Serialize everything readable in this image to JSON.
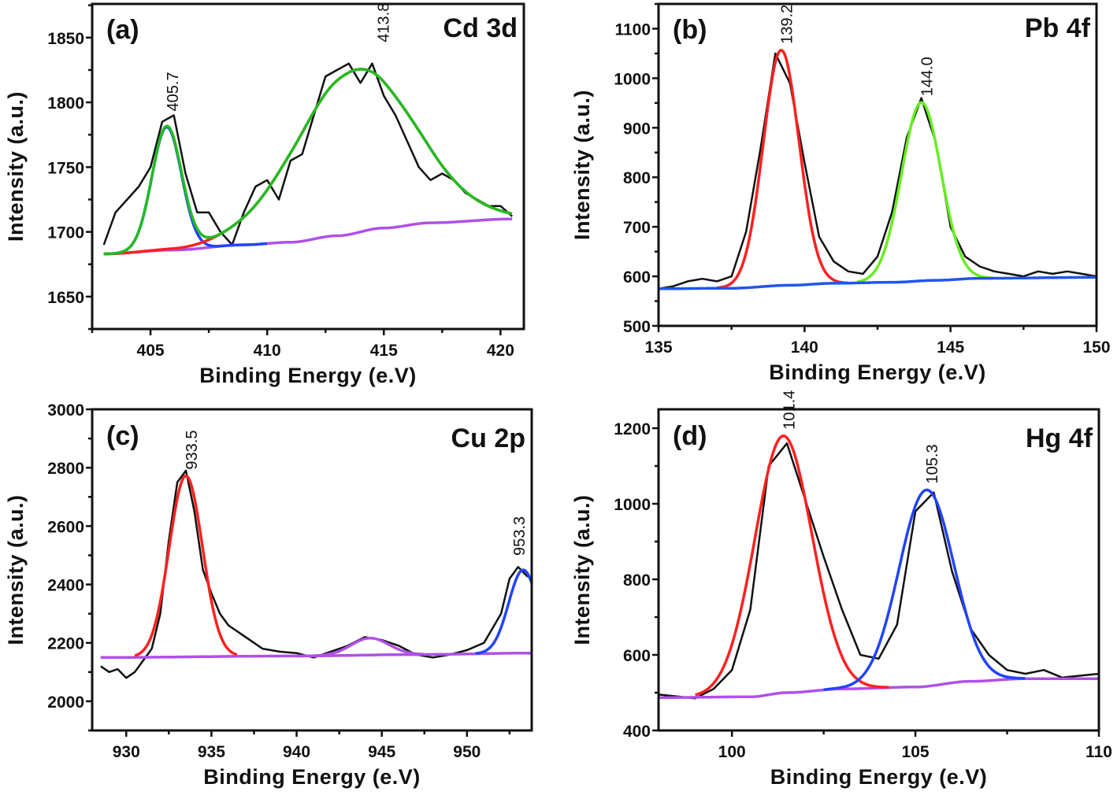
{
  "chart_data": [
    {
      "type": "line",
      "panel_label": "(a)",
      "element_label": "Cd 3d",
      "xlabel": "Binding Energy (e.V)",
      "ylabel": "Intensity (a.u.)",
      "xlim": [
        402.5,
        421.0
      ],
      "ylim": [
        1625,
        1876
      ],
      "xticks": [
        405,
        410,
        415,
        420
      ],
      "yticks": [
        1650,
        1700,
        1750,
        1800,
        1850
      ],
      "grid": false,
      "colors": {
        "raw": "#111111",
        "envelope": "#22bb22",
        "background": "#b050e8"
      },
      "raw": {
        "x": [
          403,
          403.5,
          404,
          404.5,
          405,
          405.5,
          406,
          406.5,
          407,
          407.5,
          408,
          408.5,
          409,
          409.5,
          410,
          410.5,
          411,
          411.5,
          412,
          412.5,
          413,
          413.5,
          414,
          414.5,
          415,
          415.5,
          416,
          416.5,
          417,
          417.5,
          418,
          418.5,
          419,
          419.5,
          420,
          420.5
        ],
        "y": [
          1690,
          1715,
          1725,
          1735,
          1750,
          1785,
          1790,
          1745,
          1715,
          1715,
          1700,
          1690,
          1715,
          1735,
          1740,
          1725,
          1755,
          1760,
          1790,
          1820,
          1825,
          1830,
          1815,
          1830,
          1805,
          1790,
          1770,
          1750,
          1740,
          1745,
          1740,
          1730,
          1725,
          1720,
          1720,
          1712
        ]
      },
      "background": [
        [
          403,
          1683
        ],
        [
          406,
          1686
        ],
        [
          409,
          1690
        ],
        [
          411,
          1692
        ],
        [
          413,
          1697
        ],
        [
          415,
          1703
        ],
        [
          417,
          1707
        ],
        [
          420.5,
          1710
        ]
      ],
      "peaks": [
        {
          "center": 405.7,
          "height": 95,
          "fwhm": 1.5,
          "color": "#2244ff",
          "range": [
            403,
            410
          ],
          "label": "405.7"
        },
        {
          "center": 413.8,
          "height": 126,
          "fwhm": 6.0,
          "color": "#ff2020",
          "range": [
            403,
            420.5
          ],
          "label": "413.8"
        }
      ],
      "envelope": true
    },
    {
      "type": "line",
      "panel_label": "(b)",
      "element_label": "Pb 4f",
      "xlabel": "Binding Energy (e.V)",
      "ylabel": "Intensity (a.u.)",
      "xlim": [
        135,
        150
      ],
      "ylim": [
        500,
        1150
      ],
      "xticks": [
        135,
        140,
        145,
        150
      ],
      "yticks": [
        500,
        600,
        700,
        800,
        900,
        1000,
        1100
      ],
      "grid": false,
      "colors": {
        "raw": "#111111",
        "background": "#2255ee"
      },
      "raw": {
        "x": [
          135,
          135.5,
          136,
          136.5,
          137,
          137.5,
          138,
          138.5,
          139,
          139.5,
          140,
          140.5,
          141,
          141.5,
          142,
          142.5,
          143,
          143.5,
          144,
          144.5,
          145,
          145.5,
          146,
          146.5,
          147,
          147.5,
          148,
          148.5,
          149,
          149.5,
          150
        ],
        "y": [
          575,
          580,
          590,
          595,
          590,
          600,
          690,
          860,
          1050,
          990,
          830,
          680,
          630,
          610,
          605,
          640,
          730,
          880,
          960,
          870,
          700,
          640,
          620,
          610,
          605,
          600,
          610,
          605,
          610,
          605,
          600
        ]
      },
      "background": [
        [
          135,
          575
        ],
        [
          137.5,
          576
        ],
        [
          139.5,
          582
        ],
        [
          141,
          586
        ],
        [
          143,
          588
        ],
        [
          144.5,
          592
        ],
        [
          146,
          596
        ],
        [
          150,
          598
        ]
      ],
      "peaks": [
        {
          "center": 139.2,
          "height": 475,
          "fwhm": 1.45,
          "color": "#ff2020",
          "range": [
            137,
            141.5
          ],
          "label": "139.2"
        },
        {
          "center": 144.0,
          "height": 360,
          "fwhm": 1.6,
          "color": "#66ee22",
          "range": [
            141.8,
            146.5
          ],
          "label": "144.0"
        }
      ],
      "envelope": false
    },
    {
      "type": "line",
      "panel_label": "(c)",
      "element_label": "Cu 2p",
      "xlabel": "Binding Energy (e.V)",
      "ylabel": "Intensity (a.u.)",
      "xlim": [
        928.0,
        953.8
      ],
      "ylim": [
        1900,
        3000
      ],
      "xticks": [
        930,
        935,
        940,
        945,
        950
      ],
      "yticks": [
        2000,
        2200,
        2400,
        2600,
        2800,
        3000
      ],
      "grid": false,
      "colors": {
        "raw": "#111111",
        "background": "#b050e8"
      },
      "raw": {
        "x": [
          928.5,
          929,
          929.5,
          930,
          930.5,
          931,
          931.5,
          932,
          932.5,
          933,
          933.5,
          934,
          934.5,
          935,
          935.5,
          936,
          936.5,
          937,
          937.5,
          938,
          939,
          940,
          941,
          942,
          943,
          944,
          945,
          946,
          947,
          948,
          949,
          950,
          951,
          952,
          952.5,
          953,
          953.5,
          953.8
        ],
        "y": [
          2120,
          2100,
          2110,
          2080,
          2100,
          2140,
          2180,
          2300,
          2550,
          2750,
          2790,
          2650,
          2450,
          2370,
          2300,
          2260,
          2240,
          2220,
          2200,
          2180,
          2170,
          2165,
          2150,
          2170,
          2190,
          2220,
          2210,
          2190,
          2160,
          2150,
          2160,
          2175,
          2200,
          2300,
          2420,
          2460,
          2430,
          2420
        ]
      },
      "background": [
        [
          928.5,
          2150
        ],
        [
          940,
          2155
        ],
        [
          947,
          2160
        ],
        [
          953.8,
          2165
        ]
      ],
      "peaks": [
        {
          "center": 933.5,
          "height": 620,
          "fwhm": 2.3,
          "color": "#ff2020",
          "range": [
            930.5,
            936.5
          ],
          "label": "933.5"
        },
        {
          "center": 944.3,
          "height": 58,
          "fwhm": 2.6,
          "color": "#b050e8",
          "range": [
            940,
            947.5
          ],
          "label": ""
        },
        {
          "center": 953.3,
          "height": 285,
          "fwhm": 2.0,
          "color": "#2244ff",
          "range": [
            950.5,
            953.8
          ],
          "label": "953.3"
        }
      ],
      "envelope": false
    },
    {
      "type": "line",
      "panel_label": "(d)",
      "element_label": "Hg 4f",
      "xlabel": "Binding Energy (e.V)",
      "ylabel": "Intensity (a.u.)",
      "xlim": [
        98,
        110
      ],
      "ylim": [
        400,
        1250
      ],
      "xticks": [
        100,
        105,
        110
      ],
      "yticks": [
        400,
        600,
        800,
        1000,
        1200
      ],
      "grid": false,
      "colors": {
        "raw": "#111111",
        "background": "#b050e8"
      },
      "raw": {
        "x": [
          98,
          98.5,
          99,
          99.5,
          100,
          100.5,
          101,
          101.5,
          102,
          102.5,
          103,
          103.5,
          104,
          104.5,
          105,
          105.5,
          106,
          106.5,
          107,
          107.5,
          108,
          108.5,
          109,
          109.5,
          110
        ],
        "y": [
          495,
          490,
          485,
          510,
          560,
          720,
          1100,
          1160,
          1010,
          860,
          720,
          600,
          590,
          680,
          980,
          1030,
          820,
          670,
          600,
          560,
          550,
          560,
          540,
          545,
          550
        ]
      },
      "background": [
        [
          98,
          487
        ],
        [
          100.5,
          489
        ],
        [
          101.5,
          500
        ],
        [
          103,
          510
        ],
        [
          105,
          515
        ],
        [
          106.5,
          530
        ],
        [
          108,
          537
        ],
        [
          110,
          537
        ]
      ],
      "peaks": [
        {
          "center": 101.4,
          "height": 680,
          "fwhm": 1.85,
          "color": "#ff2020",
          "range": [
            99,
            104.3
          ],
          "label": "101.4"
        },
        {
          "center": 105.3,
          "height": 520,
          "fwhm": 1.75,
          "color": "#2244ff",
          "range": [
            102.5,
            108
          ],
          "label": "105.3"
        }
      ],
      "envelope": false
    }
  ]
}
